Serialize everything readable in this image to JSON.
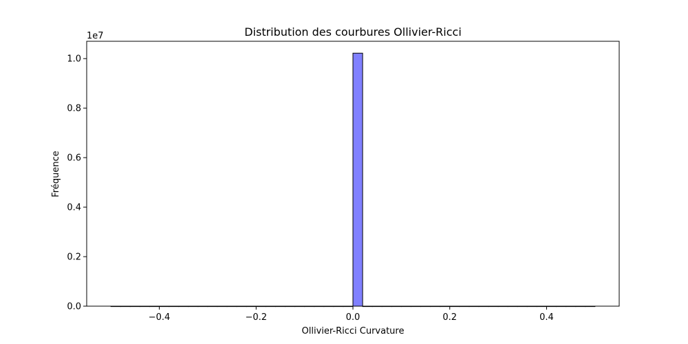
{
  "chart_data": {
    "type": "bar",
    "title": "Distribution des courbures Ollivier-Ricci",
    "xlabel": "Ollivier-Ricci Curvature",
    "ylabel": "Fréquence",
    "y_multiplier_label": "1e7",
    "xlim": [
      -0.55,
      0.55
    ],
    "ylim": [
      0,
      10700000
    ],
    "x_ticks": [
      -0.4,
      -0.2,
      0.0,
      0.2,
      0.4
    ],
    "x_tick_labels": [
      "−0.4",
      "−0.2",
      "0.0",
      "0.2",
      "0.4"
    ],
    "y_ticks": [
      0,
      2000000,
      4000000,
      6000000,
      8000000,
      10000000
    ],
    "y_tick_labels": [
      "0.0",
      "0.2",
      "0.4",
      "0.6",
      "0.8",
      "1.0"
    ],
    "bin_range": [
      -0.5,
      0.5
    ],
    "bin_count": 50,
    "bins": [
      {
        "x0": 0.0,
        "x1": 0.02,
        "value": 10220000
      }
    ],
    "colors": {
      "bar_fill": "#8080ff",
      "bar_edge": "#000000"
    },
    "grid": false,
    "legend": "none"
  }
}
